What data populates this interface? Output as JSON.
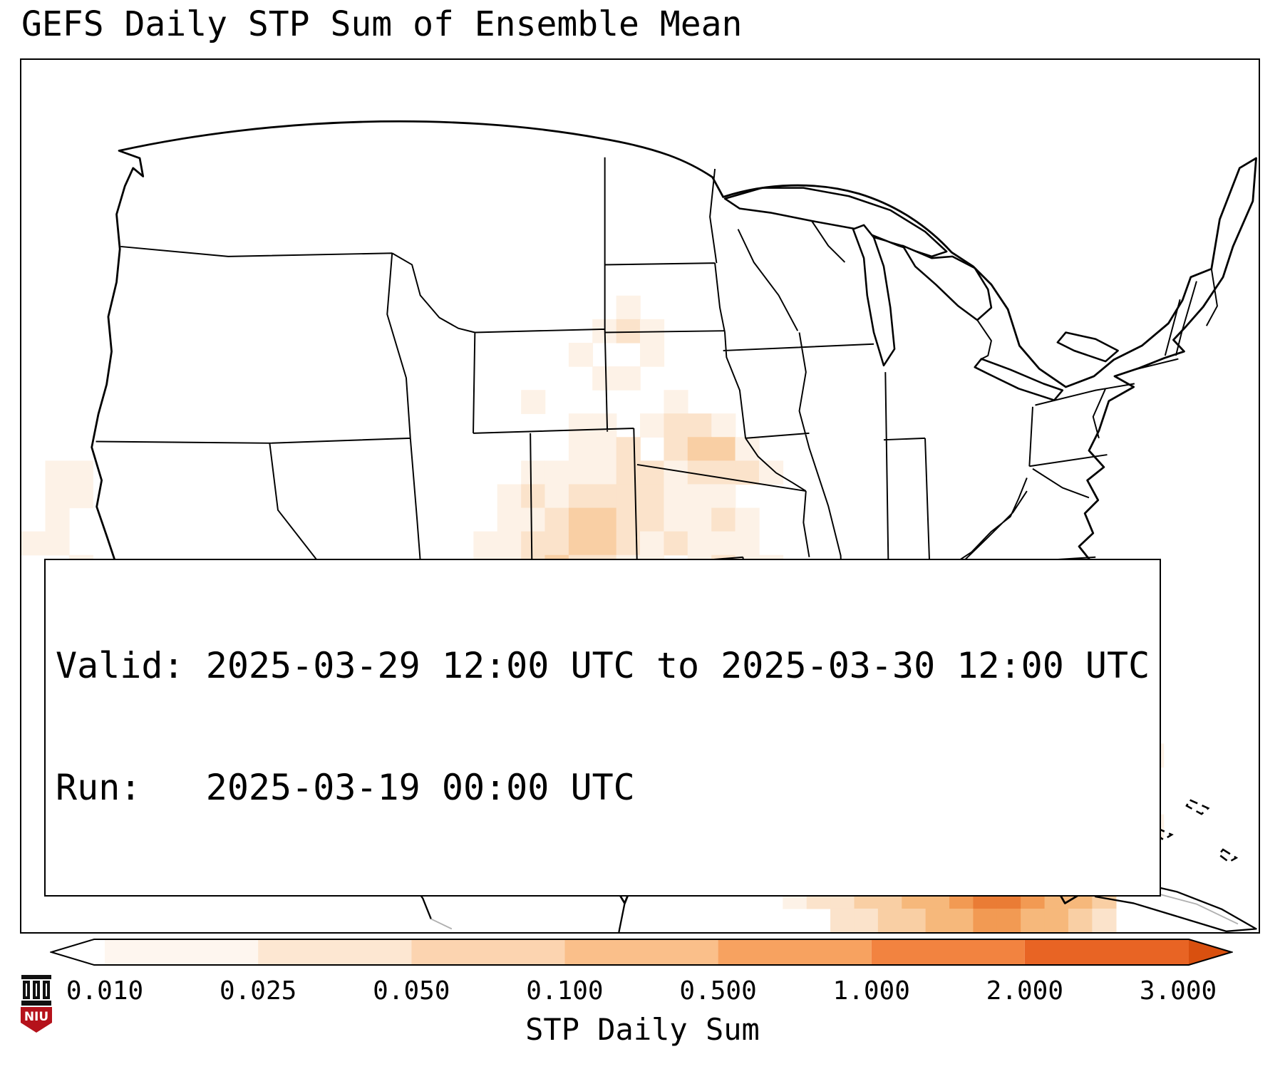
{
  "title": "GEFS Daily STP Sum of Ensemble Mean",
  "info_box": {
    "valid_line": "Valid: 2025-03-29 12:00 UTC to 2025-03-30 12:00 UTC",
    "run_line": "Run:   2025-03-19 00:00 UTC"
  },
  "colorbar": {
    "label": "STP Daily Sum",
    "ticks": [
      "0.010",
      "0.025",
      "0.050",
      "0.100",
      "0.500",
      "1.000",
      "2.000",
      "3.000"
    ],
    "segments": [
      "#ffffff",
      "#fef6ef",
      "#fde7d2",
      "#fcd4b0",
      "#fabf8a",
      "#f7a260",
      "#f28340",
      "#e86424",
      "#e86424"
    ],
    "arrow_left": "#ffffff",
    "arrow_right": "#d9500f"
  },
  "logo": {
    "text": "NIU"
  },
  "chart_data": {
    "type": "heatmap",
    "title": "GEFS Daily STP Sum of Ensemble Mean",
    "variable": "STP Daily Sum",
    "valid": "2025-03-29 12:00 UTC to 2025-03-30 12:00 UTC",
    "run": "2025-03-19 00:00 UTC",
    "scale_ticks": [
      0.01,
      0.025,
      0.05,
      0.1,
      0.5,
      1.0,
      2.0,
      3.0
    ],
    "legend_position": "bottom",
    "heatmap": {
      "cols": 52,
      "rows": 37,
      "note": "grid of shading level codes 0-6; 0 = no shading, higher = darker orange (larger STP sum). Maxima over SW/central Texas (~0.1) and offshore Atlantic near Cuba/Bahamas (~0.5-1).",
      "palette": [
        "#fdf2e7",
        "#fbe3cb",
        "#f9cfa4",
        "#f6b87b",
        "#f29a53",
        "#ea7c35"
      ],
      "grid": [
        "0000000000000000000000000000000000000000000000000000",
        "0000000000000000000000000000000000000000000000000000",
        "0000000000000000000000000000000000000000000000000000",
        "0000000000000000000000000000000000000000000000000000",
        "0000000000000000000000000000000000000000000000000000",
        "0000000000000000000000000000000000000000000000000000",
        "0000000000000000000000000000000000000000000000000000",
        "0000000000000000000000000000000000000000000000000000",
        "0000000000000000000000000000000000000000000000000000",
        "0000000000000000000000000000000000000000000000000000",
        "0000000000000000000000000100000000000000000000000000",
        "0000000000000000000000001210000000000000000000000000",
        "0000000000000000000000010010000000000000000000000000",
        "0000000000000000000000001100000000000000000000000000",
        "0000000000000000000001000001000000000000000000000000",
        "0000000000000000000000011012210000000000000000000000",
        "0000000000000000000000011202331000000000000000000000",
        "0110000000000000000001111221222100000000000000000000",
        "0110000000000000000012122221110000000000000000000000",
        "0100000000000000000011233221121000000000000000000000",
        "1100000000000000000112233212111000000000000000000000",
        "0010000000000000000112322110121100000000000000000000",
        "0000000000000000000011234211012100000000000000000000",
        "0000000000000000000112232210132100000000000000000000",
        "0000000000000000000011222110123100000000000000000000",
        "0000000000000000000011232210112110100000000000000000",
        "0000000000000000000011244321011211110000000000000000",
        "0000000000000000000001234321011121110110000000000000",
        "0000000000000000000001123221112222111011000111100000",
        "0000000000000000000001122111222322111211210011110000",
        "0000000000000000000000112112223222211222232000000000",
        "0000000000000000000000011122232222122333322000000000",
        "0000000000000000000000000011223222322233344332210000",
        "0000000000000000000000000000112232223333444433000000",
        "0000000000000000000000000000001222333344554433000000",
        "0000000000000000000000000000000012233445665443000000",
        "0000000000000000000000000000000000223344554432000000"
      ]
    }
  }
}
